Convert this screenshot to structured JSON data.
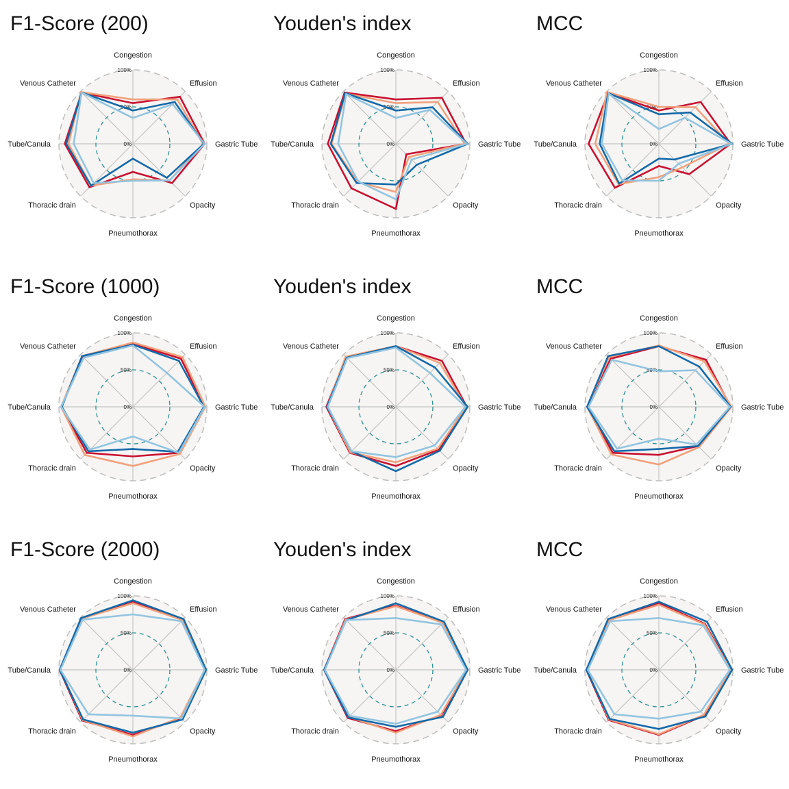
{
  "colors": {
    "background": "#f6f5f4",
    "outer_ring": "#bdbdbd",
    "mid_ring": "#2a8f8f",
    "spoke": "#c4c4c4",
    "series": [
      "#c8102e",
      "#f2a07b",
      "#1469a8",
      "#92c4e0"
    ]
  },
  "chart_data": [
    {
      "type": "radar",
      "title": "F1-Score (200)",
      "categories": [
        "Congestion",
        "Effusion",
        "Gastric Tube",
        "Opacity",
        "Pneumothorax",
        "Thoracic drain",
        "Tube/Canula",
        "Venous Catheter"
      ],
      "tick_labels": [
        "100%",
        "50%",
        "0%"
      ],
      "rlim": [
        0,
        100
      ],
      "series": [
        {
          "values": [
            55,
            90,
            97,
            75,
            38,
            83,
            92,
            98
          ]
        },
        {
          "values": [
            60,
            85,
            95,
            70,
            48,
            80,
            87,
            99
          ]
        },
        {
          "values": [
            45,
            80,
            96,
            65,
            20,
            80,
            90,
            98
          ]
        },
        {
          "values": [
            35,
            76,
            97,
            70,
            50,
            75,
            80,
            98
          ]
        }
      ]
    },
    {
      "type": "radar",
      "title": "Youden's index",
      "categories": [
        "Congestion",
        "Effusion",
        "Gastric Tube",
        "Opacity",
        "Pneumothorax",
        "Thoracic drain",
        "Tube/Canula",
        "Venous Catheter"
      ],
      "tick_labels": [
        "100%",
        "50%",
        "0%"
      ],
      "rlim": [
        0,
        100
      ],
      "series": [
        {
          "values": [
            60,
            88,
            95,
            20,
            88,
            85,
            92,
            98
          ]
        },
        {
          "values": [
            55,
            80,
            93,
            25,
            65,
            73,
            87,
            96
          ]
        },
        {
          "values": [
            45,
            70,
            97,
            40,
            55,
            75,
            88,
            97
          ]
        },
        {
          "values": [
            35,
            65,
            96,
            30,
            75,
            72,
            78,
            95
          ]
        }
      ]
    },
    {
      "type": "radar",
      "title": "MCC",
      "categories": [
        "Congestion",
        "Effusion",
        "Gastric Tube",
        "Opacity",
        "Pneumothorax",
        "Thoracic drain",
        "Tube/Canula",
        "Venous Catheter"
      ],
      "tick_labels": [
        "100%",
        "50%",
        "0%"
      ],
      "rlim": [
        0,
        100
      ],
      "series": [
        {
          "values": [
            45,
            80,
            97,
            58,
            30,
            84,
            95,
            97
          ]
        },
        {
          "values": [
            50,
            70,
            95,
            45,
            45,
            77,
            86,
            99
          ]
        },
        {
          "values": [
            40,
            60,
            99,
            30,
            20,
            76,
            80,
            97
          ]
        },
        {
          "values": [
            20,
            50,
            98,
            38,
            50,
            70,
            77,
            96
          ]
        }
      ]
    },
    {
      "type": "radar",
      "title": "F1-Score (1000)",
      "categories": [
        "Congestion",
        "Effusion",
        "Gastric Tube",
        "Opacity",
        "Pneumothorax",
        "Thoracic drain",
        "Tube/Canula",
        "Venous Catheter"
      ],
      "tick_labels": [
        "100%",
        "50%",
        "0%"
      ],
      "rlim": [
        0,
        100
      ],
      "series": [
        {
          "values": [
            85,
            92,
            97,
            88,
            67,
            88,
            97,
            95
          ]
        },
        {
          "values": [
            87,
            95,
            98,
            90,
            80,
            92,
            97,
            97
          ]
        },
        {
          "values": [
            84,
            88,
            96,
            86,
            57,
            85,
            96,
            97
          ]
        },
        {
          "values": [
            83,
            65,
            97,
            88,
            40,
            82,
            97,
            94
          ]
        }
      ]
    },
    {
      "type": "radar",
      "title": "Youden's index",
      "categories": [
        "Congestion",
        "Effusion",
        "Gastric Tube",
        "Opacity",
        "Pneumothorax",
        "Thoracic drain",
        "Tube/Canula",
        "Venous Catheter"
      ],
      "tick_labels": [
        "100%",
        "50%",
        "0%"
      ],
      "rlim": [
        0,
        100
      ],
      "series": [
        {
          "values": [
            82,
            88,
            96,
            82,
            80,
            88,
            94,
            95
          ]
        },
        {
          "values": [
            82,
            84,
            95,
            80,
            75,
            87,
            93,
            96
          ]
        },
        {
          "values": [
            82,
            75,
            97,
            84,
            87,
            85,
            93,
            94
          ]
        },
        {
          "values": [
            80,
            65,
            94,
            74,
            68,
            85,
            92,
            93
          ]
        }
      ]
    },
    {
      "type": "radar",
      "title": "MCC",
      "categories": [
        "Congestion",
        "Effusion",
        "Gastric Tube",
        "Opacity",
        "Pneumothorax",
        "Thoracic drain",
        "Tube/Canula",
        "Venous Catheter"
      ],
      "tick_labels": [
        "100%",
        "50%",
        "0%"
      ],
      "rlim": [
        0,
        100
      ],
      "series": [
        {
          "values": [
            82,
            90,
            97,
            75,
            65,
            88,
            97,
            92
          ]
        },
        {
          "values": [
            83,
            87,
            98,
            77,
            78,
            91,
            97,
            95
          ]
        },
        {
          "values": [
            82,
            77,
            97,
            75,
            57,
            85,
            97,
            97
          ]
        },
        {
          "values": [
            48,
            70,
            96,
            72,
            43,
            80,
            95,
            90
          ]
        }
      ]
    },
    {
      "type": "radar",
      "title": "F1-Score (2000)",
      "categories": [
        "Congestion",
        "Effusion",
        "Gastric Tube",
        "Opacity",
        "Pneumothorax",
        "Thoracic drain",
        "Tube/Canula",
        "Venous Catheter"
      ],
      "tick_labels": [
        "100%",
        "50%",
        "0%"
      ],
      "rlim": [
        0,
        100
      ],
      "series": [
        {
          "values": [
            92,
            96,
            98,
            93,
            88,
            97,
            99,
            98
          ]
        },
        {
          "values": [
            90,
            95,
            97,
            91,
            90,
            96,
            98,
            98
          ]
        },
        {
          "values": [
            94,
            97,
            99,
            95,
            85,
            95,
            99,
            99
          ]
        },
        {
          "values": [
            75,
            93,
            97,
            93,
            62,
            85,
            98,
            96
          ]
        }
      ]
    },
    {
      "type": "radar",
      "title": "Youden's index",
      "categories": [
        "Congestion",
        "Effusion",
        "Gastric Tube",
        "Opacity",
        "Pneumothorax",
        "Thoracic drain",
        "Tube/Canula",
        "Venous Catheter"
      ],
      "tick_labels": [
        "100%",
        "50%",
        "0%"
      ],
      "rlim": [
        0,
        100
      ],
      "series": [
        {
          "values": [
            87,
            90,
            97,
            87,
            83,
            92,
            97,
            97
          ]
        },
        {
          "values": [
            86,
            90,
            96,
            86,
            85,
            90,
            97,
            96
          ]
        },
        {
          "values": [
            90,
            92,
            97,
            90,
            77,
            91,
            97,
            95
          ]
        },
        {
          "values": [
            70,
            87,
            95,
            80,
            73,
            88,
            96,
            95
          ]
        }
      ]
    },
    {
      "type": "radar",
      "title": "MCC",
      "categories": [
        "Congestion",
        "Effusion",
        "Gastric Tube",
        "Opacity",
        "Pneumothorax",
        "Thoracic drain",
        "Tube/Canula",
        "Venous Catheter"
      ],
      "tick_labels": [
        "100%",
        "50%",
        "0%"
      ],
      "rlim": [
        0,
        100
      ],
      "series": [
        {
          "values": [
            90,
            88,
            98,
            87,
            88,
            96,
            98,
            96
          ]
        },
        {
          "values": [
            88,
            87,
            97,
            86,
            87,
            95,
            97,
            95
          ]
        },
        {
          "values": [
            92,
            92,
            99,
            89,
            80,
            94,
            98,
            97
          ]
        },
        {
          "values": [
            70,
            85,
            96,
            80,
            66,
            85,
            96,
            93
          ]
        }
      ]
    }
  ]
}
